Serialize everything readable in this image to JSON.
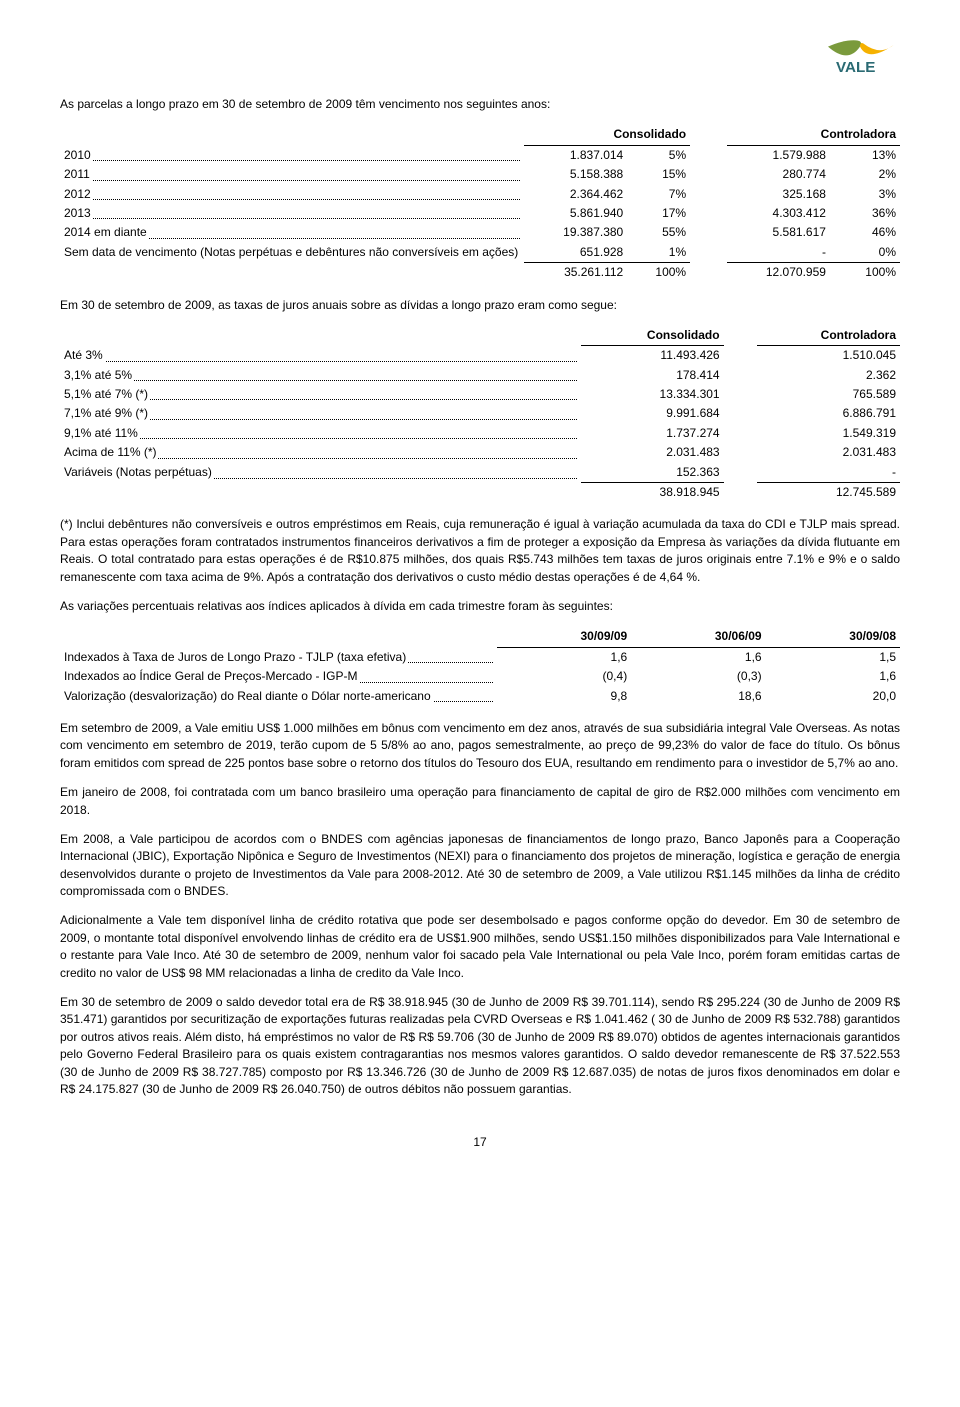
{
  "logo": {
    "name": "VALE",
    "colorTop": "#7a9a3c",
    "colorBottom": "#f5b100",
    "textColor": "#2a6a73"
  },
  "intro1": "As parcelas a longo prazo em 30 de setembro de 2009 têm vencimento nos seguintes anos:",
  "table1": {
    "headers": [
      "",
      "Consolidado",
      "",
      "Controladora",
      ""
    ],
    "rows": [
      {
        "label": "2010",
        "c1": "1.837.014",
        "p1": "5%",
        "c2": "1.579.988",
        "p2": "13%"
      },
      {
        "label": "2011",
        "c1": "5.158.388",
        "p1": "15%",
        "c2": "280.774",
        "p2": "2%"
      },
      {
        "label": "2012",
        "c1": "2.364.462",
        "p1": "7%",
        "c2": "325.168",
        "p2": "3%"
      },
      {
        "label": "2013",
        "c1": "5.861.940",
        "p1": "17%",
        "c2": "4.303.412",
        "p2": "36%"
      },
      {
        "label": "2014 em diante",
        "c1": "19.387.380",
        "p1": "55%",
        "c2": "5.581.617",
        "p2": "46%"
      },
      {
        "label": "Sem data de vencimento (Notas perpétuas e debêntures não conversíveis em ações)",
        "c1": "651.928",
        "p1": "1%",
        "c2": "-",
        "p2": "0%"
      }
    ],
    "total": {
      "c1": "35.261.112",
      "p1": "100%",
      "c2": "12.070.959",
      "p2": "100%"
    }
  },
  "intro2": "Em 30 de setembro de 2009, as taxas de juros anuais sobre as dívidas a longo prazo eram como segue:",
  "table2": {
    "headers": [
      "",
      "Consolidado",
      "Controladora"
    ],
    "rows": [
      {
        "label": "Até 3%",
        "c1": "11.493.426",
        "c2": "1.510.045"
      },
      {
        "label": "3,1% até 5%",
        "c1": "178.414",
        "c2": "2.362"
      },
      {
        "label": "5,1% até 7% (*)",
        "c1": "13.334.301",
        "c2": "765.589"
      },
      {
        "label": "7,1% até 9% (*)",
        "c1": "9.991.684",
        "c2": "6.886.791"
      },
      {
        "label": "9,1% até 11%",
        "c1": "1.737.274",
        "c2": "1.549.319"
      },
      {
        "label": "Acima de 11% (*)",
        "c1": "2.031.483",
        "c2": "2.031.483"
      },
      {
        "label": "Variáveis (Notas perpétuas)",
        "c1": "152.363",
        "c2": "-"
      }
    ],
    "total": {
      "c1": "38.918.945",
      "c2": "12.745.589"
    }
  },
  "para1": "(*) Inclui debêntures não conversíveis e outros empréstimos em Reais, cuja remuneração é igual à variação acumulada da taxa do CDI e TJLP mais spread. Para estas operações foram contratados instrumentos financeiros derivativos a fim de proteger a exposição da Empresa às variações da dívida flutuante em Reais. O total contratado para estas operações é de R$10.875 milhões, dos quais R$5.743 milhões tem taxas de juros originais entre 7.1% e 9% e o saldo remanescente com taxa acima de 9%. Após a contratação dos derivativos o custo médio destas operações é de 4,64 %.",
  "para2": "As variações percentuais relativas aos índices aplicados à dívida em cada trimestre foram às seguintes:",
  "table3": {
    "headers": [
      "",
      "30/09/09",
      "30/06/09",
      "30/09/08"
    ],
    "rows": [
      {
        "label": "Indexados à Taxa de Juros de Longo Prazo - TJLP (taxa efetiva)",
        "a": "1,6",
        "b": "1,6",
        "c": "1,5"
      },
      {
        "label": "Indexados ao Índice Geral de Preços-Mercado - IGP-M",
        "a": "(0,4)",
        "b": "(0,3)",
        "c": "1,6"
      },
      {
        "label": "Valorização (desvalorização) do Real diante o Dólar norte-americano",
        "a": "9,8",
        "b": "18,6",
        "c": "20,0"
      }
    ]
  },
  "para3": "Em setembro de 2009, a Vale emitiu US$ 1.000 milhões em bônus com vencimento em dez anos, através de sua subsidiária integral Vale Overseas. As notas com vencimento em setembro de 2019, terão cupom de 5 5/8% ao ano, pagos semestralmente, ao preço de 99,23% do valor de face do título. Os bônus foram emitidos com spread de 225 pontos base sobre o retorno dos títulos do Tesouro dos EUA, resultando em rendimento para o investidor de 5,7% ao ano.",
  "para4": "Em janeiro de 2008, foi contratada com um banco brasileiro uma operação para financiamento de capital de giro de R$2.000 milhões com vencimento em 2018.",
  "para5": "Em 2008, a Vale participou de acordos com o BNDES com agências japonesas de financiamentos de longo prazo, Banco Japonês para a Cooperação Internacional (JBIC), Exportação Nipônica e Seguro de Investimentos (NEXI) para o financiamento dos projetos de mineração, logística e geração de energia desenvolvidos durante o projeto de Investimentos da Vale para 2008-2012. Até 30 de setembro de 2009, a Vale utilizou R$1.145 milhões da linha de crédito compromissada com o BNDES.",
  "para6": "Adicionalmente a Vale tem disponível linha de crédito rotativa que pode ser desembolsado e pagos conforme opção do devedor. Em 30 de setembro de 2009, o montante total disponível envolvendo linhas de crédito era de US$1.900 milhões, sendo US$1.150 milhões disponibilizados para Vale International e o restante para Vale Inco. Até 30 de setembro de 2009, nenhum valor foi sacado pela Vale International ou pela Vale Inco, porém foram emitidas cartas de credito no valor de US$ 98 MM relacionadas a linha de credito da Vale Inco.",
  "para7": "Em 30 de setembro de 2009 o saldo devedor total  era de R$ 38.918.945 (30 de Junho de 2009 R$ 39.701.114), sendo R$ 295.224 (30 de Junho de 2009 R$ 351.471) garantidos por securitização de exportações futuras realizadas pela CVRD Overseas e R$ 1.041.462 ( 30 de Junho de 2009 R$ 532.788) garantidos por outros  ativos reais. Além disto, há empréstimos no valor de R$ R$ 59.706 (30 de Junho de 2009 R$ 89.070) obtidos de agentes internacionais garantidos pelo Governo Federal Brasileiro para os quais existem contragarantias nos mesmos valores garantidos. O saldo devedor remanescente de R$ 37.522.553 (30 de Junho de 2009 R$ 38.727.785) composto por R$ 13.346.726 (30 de Junho de 2009 R$ 12.687.035) de notas de juros fixos denominados em dolar e R$ 24.175.827 (30 de Junho de 2009 R$ 26.040.750) de outros débitos não possuem garantias.",
  "pageNum": "17"
}
